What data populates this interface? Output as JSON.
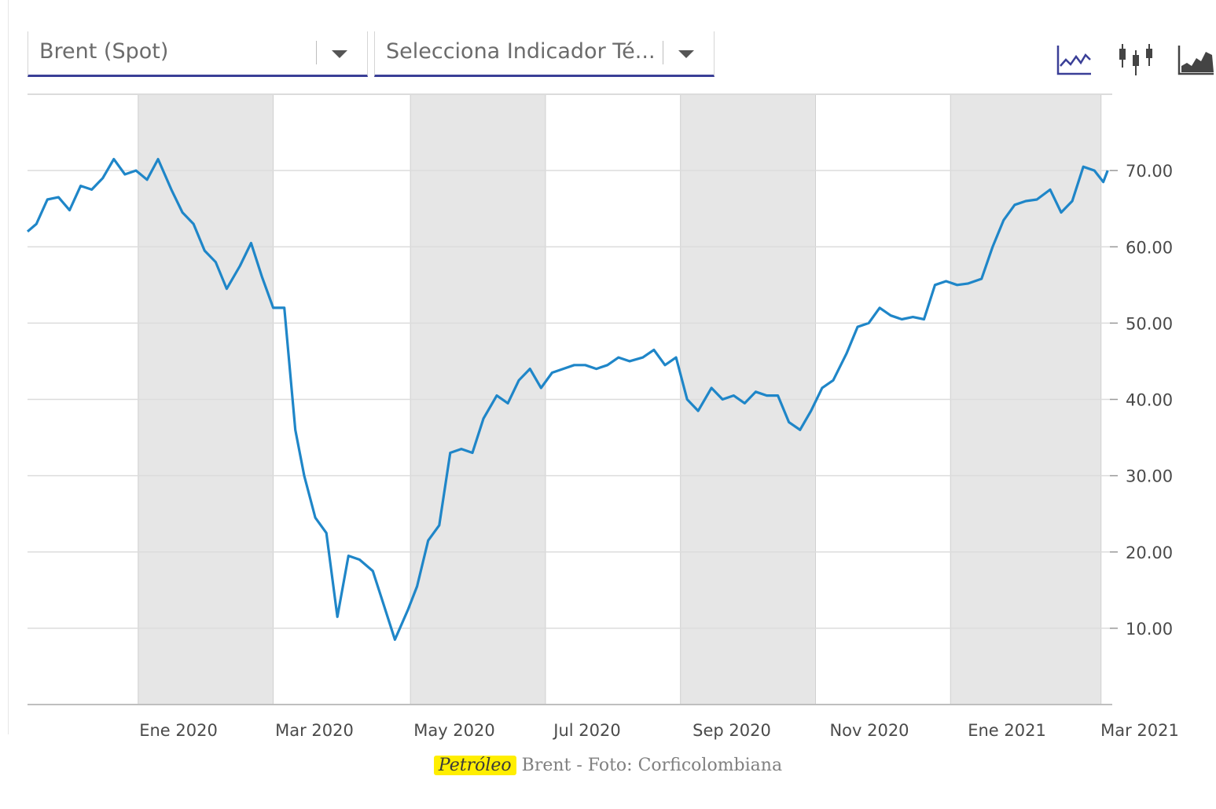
{
  "controls": {
    "series_select": "Brent (Spot)",
    "indicator_select": "Selecciona Indicador Té...",
    "tools": [
      {
        "name": "line-chart-icon"
      },
      {
        "name": "candlestick-chart-icon"
      },
      {
        "name": "area-chart-icon"
      }
    ]
  },
  "caption": {
    "highlight": "Petróleo",
    "text": " Brent - Foto: Corficolombiana"
  },
  "colors": {
    "line": "#1f86c8",
    "shade": "#e6e6e6",
    "grid": "#dcdcdc",
    "accent": "#3a3f97"
  },
  "chart_data": {
    "type": "line",
    "title": "",
    "xlabel": "",
    "ylabel": "",
    "ylim": [
      0,
      80
    ],
    "yticks": [
      "10.00",
      "20.00",
      "30.00",
      "40.00",
      "50.00",
      "60.00",
      "70.00"
    ],
    "xticks": [
      "Ene 2020",
      "Mar 2020",
      "May 2020",
      "Jul 2020",
      "Sep 2020",
      "Nov 2020",
      "Ene 2021",
      "Mar 2021"
    ],
    "xlim": [
      "2019-11-01",
      "2021-03-04"
    ],
    "shaded_bands": [
      [
        "2019-12-21",
        "2020-02-20"
      ],
      [
        "2020-04-22",
        "2020-06-22"
      ],
      [
        "2020-08-22",
        "2020-10-22"
      ],
      [
        "2020-12-22",
        "2021-02-28"
      ]
    ],
    "legend": "none",
    "grid": true,
    "series": [
      {
        "name": "",
        "x": [
          "2019-11-01",
          "2019-11-05",
          "2019-11-10",
          "2019-11-15",
          "2019-11-20",
          "2019-11-25",
          "2019-11-30",
          "2019-12-05",
          "2019-12-10",
          "2019-12-15",
          "2019-12-20",
          "2019-12-25",
          "2019-12-30",
          "2020-01-05",
          "2020-01-10",
          "2020-01-15",
          "2020-01-20",
          "2020-01-25",
          "2020-01-30",
          "2020-02-05",
          "2020-02-10",
          "2020-02-15",
          "2020-02-20",
          "2020-02-25",
          "2020-03-01",
          "2020-03-05",
          "2020-03-10",
          "2020-03-15",
          "2020-03-20",
          "2020-03-25",
          "2020-03-30",
          "2020-04-05",
          "2020-04-10",
          "2020-04-15",
          "2020-04-21",
          "2020-04-25",
          "2020-04-30",
          "2020-05-05",
          "2020-05-10",
          "2020-05-15",
          "2020-05-20",
          "2020-05-25",
          "2020-05-31",
          "2020-06-05",
          "2020-06-10",
          "2020-06-15",
          "2020-06-20",
          "2020-06-25",
          "2020-06-30",
          "2020-07-05",
          "2020-07-10",
          "2020-07-15",
          "2020-07-20",
          "2020-07-25",
          "2020-07-30",
          "2020-08-05",
          "2020-08-10",
          "2020-08-15",
          "2020-08-20",
          "2020-08-25",
          "2020-08-30",
          "2020-09-05",
          "2020-09-10",
          "2020-09-15",
          "2020-09-20",
          "2020-09-25",
          "2020-09-30",
          "2020-10-05",
          "2020-10-10",
          "2020-10-15",
          "2020-10-20",
          "2020-10-25",
          "2020-10-30",
          "2020-11-05",
          "2020-11-10",
          "2020-11-15",
          "2020-11-20",
          "2020-11-25",
          "2020-11-30",
          "2020-12-05",
          "2020-12-10",
          "2020-12-15",
          "2020-12-20",
          "2020-12-25",
          "2020-12-30",
          "2021-01-05",
          "2021-01-10",
          "2021-01-15",
          "2021-01-20",
          "2021-01-25",
          "2021-01-30",
          "2021-02-05",
          "2021-02-10",
          "2021-02-15",
          "2021-02-20",
          "2021-02-25",
          "2021-03-01",
          "2021-03-03"
        ],
        "values": [
          62.0,
          63.0,
          66.2,
          66.5,
          64.8,
          68.0,
          67.5,
          69.0,
          71.5,
          69.5,
          70.0,
          68.8,
          71.5,
          67.5,
          64.5,
          63.0,
          59.5,
          58.0,
          54.5,
          57.5,
          60.5,
          56.0,
          52.0,
          52.0,
          36.0,
          30.0,
          24.5,
          22.5,
          11.5,
          19.5,
          19.0,
          17.5,
          13.0,
          8.5,
          12.5,
          15.5,
          21.5,
          23.5,
          33.0,
          33.5,
          33.0,
          37.5,
          40.5,
          39.5,
          42.5,
          44.0,
          41.5,
          43.5,
          44.0,
          44.5,
          44.5,
          44.0,
          44.5,
          45.5,
          45.0,
          45.5,
          46.5,
          44.5,
          45.5,
          40.0,
          38.5,
          41.5,
          40.0,
          40.5,
          39.5,
          41.0,
          40.5,
          40.5,
          37.0,
          36.0,
          38.5,
          41.5,
          42.5,
          46.0,
          49.5,
          50.0,
          52.0,
          51.0,
          50.5,
          50.8,
          50.5,
          55.0,
          55.5,
          55.0,
          55.2,
          55.8,
          60.0,
          63.5,
          65.5,
          66.0,
          66.2,
          67.5,
          64.5,
          66.0,
          70.5,
          70.0,
          68.5,
          70.0
        ]
      }
    ]
  }
}
